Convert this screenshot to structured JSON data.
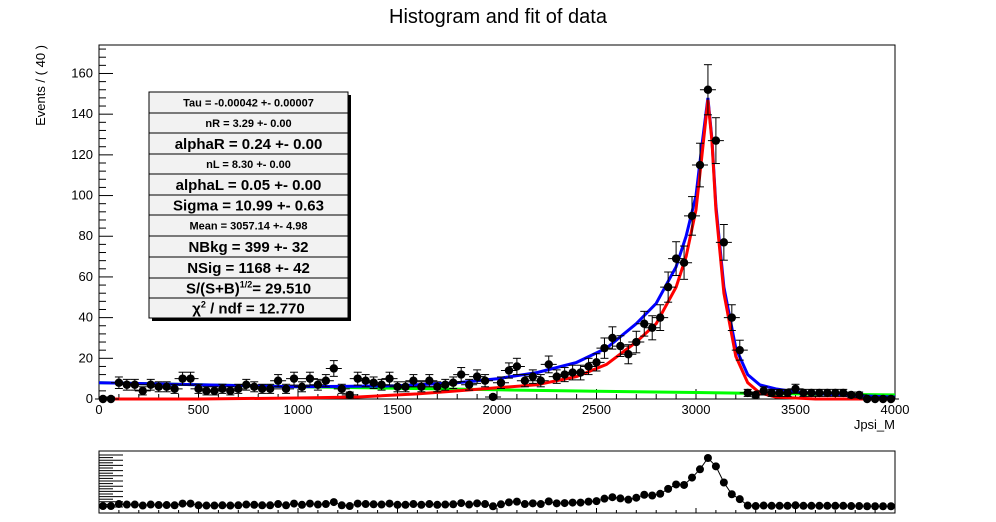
{
  "chart_data": {
    "type": "scatter",
    "title": "Histogram and fit of data",
    "xlabel": "Jpsi_M",
    "ylabel": "Events / ( 40 )",
    "xlim": [
      0,
      4000
    ],
    "ylim": [
      0,
      174
    ],
    "xticks": [
      "0",
      "500",
      "1000",
      "1500",
      "2000",
      "2500",
      "3000",
      "3500",
      "4000"
    ],
    "yticks": [
      "0",
      "20",
      "40",
      "60",
      "80",
      "100",
      "120",
      "140",
      "160"
    ],
    "legend": "none",
    "fit_results": [
      "Tau = -0.00042 +- 0.00007",
      "nR = 3.29 +- 0.00",
      "alphaR = 0.24 +- 0.00",
      "nL = 8.30 +- 0.00",
      "alphaL = 0.05 +- 0.00",
      "Sigma = 10.99 +- 0.63",
      "Mean = 3057.14 +- 4.98",
      "NBkg = 399 +- 32",
      "NSig = 1168 +- 42",
      "S/(S+B)",
      "1/2",
      "= 29.510",
      "χ",
      "2",
      " / ndf = 12.770"
    ],
    "series_colors": {
      "data": "#000000",
      "total": "#0000ff",
      "signal": "#ff0000",
      "background": "#00ff00"
    },
    "data_points": [
      [
        20,
        0
      ],
      [
        60,
        0
      ],
      [
        100,
        8
      ],
      [
        140,
        7
      ],
      [
        180,
        7
      ],
      [
        220,
        4
      ],
      [
        260,
        7
      ],
      [
        300,
        6
      ],
      [
        340,
        6
      ],
      [
        380,
        5
      ],
      [
        420,
        10
      ],
      [
        460,
        10
      ],
      [
        500,
        5
      ],
      [
        540,
        4
      ],
      [
        580,
        4
      ],
      [
        620,
        5
      ],
      [
        660,
        4
      ],
      [
        700,
        5
      ],
      [
        740,
        7
      ],
      [
        780,
        6
      ],
      [
        820,
        5
      ],
      [
        860,
        5
      ],
      [
        900,
        9
      ],
      [
        940,
        5
      ],
      [
        980,
        10
      ],
      [
        1020,
        6
      ],
      [
        1060,
        10
      ],
      [
        1100,
        7
      ],
      [
        1140,
        9
      ],
      [
        1180,
        15
      ],
      [
        1220,
        5
      ],
      [
        1260,
        2
      ],
      [
        1300,
        10
      ],
      [
        1340,
        9
      ],
      [
        1380,
        8
      ],
      [
        1420,
        7
      ],
      [
        1460,
        10
      ],
      [
        1500,
        6
      ],
      [
        1540,
        6
      ],
      [
        1580,
        9
      ],
      [
        1620,
        6
      ],
      [
        1660,
        9
      ],
      [
        1700,
        6
      ],
      [
        1740,
        7
      ],
      [
        1780,
        8
      ],
      [
        1820,
        12
      ],
      [
        1860,
        7
      ],
      [
        1900,
        11
      ],
      [
        1940,
        9
      ],
      [
        1980,
        1
      ],
      [
        2020,
        8
      ],
      [
        2060,
        14
      ],
      [
        2100,
        16
      ],
      [
        2140,
        9
      ],
      [
        2180,
        11
      ],
      [
        2220,
        9
      ],
      [
        2260,
        17
      ],
      [
        2300,
        11
      ],
      [
        2340,
        12
      ],
      [
        2380,
        13
      ],
      [
        2420,
        13
      ],
      [
        2460,
        16
      ],
      [
        2500,
        18
      ],
      [
        2540,
        25
      ],
      [
        2580,
        30
      ],
      [
        2620,
        26
      ],
      [
        2660,
        22
      ],
      [
        2700,
        28
      ],
      [
        2740,
        37
      ],
      [
        2780,
        35
      ],
      [
        2820,
        40
      ],
      [
        2860,
        55
      ],
      [
        2900,
        69
      ],
      [
        2940,
        67
      ],
      [
        2980,
        90
      ],
      [
        3020,
        115
      ],
      [
        3060,
        152
      ],
      [
        3100,
        127
      ],
      [
        3140,
        77
      ],
      [
        3180,
        40
      ],
      [
        3220,
        24
      ],
      [
        3260,
        3
      ],
      [
        3300,
        2
      ],
      [
        3340,
        4
      ],
      [
        3380,
        3
      ],
      [
        3420,
        3
      ],
      [
        3460,
        3
      ],
      [
        3500,
        5
      ],
      [
        3540,
        3
      ],
      [
        3580,
        3
      ],
      [
        3620,
        3
      ],
      [
        3660,
        3
      ],
      [
        3700,
        3
      ],
      [
        3740,
        3
      ],
      [
        3780,
        2
      ],
      [
        3820,
        2
      ],
      [
        3860,
        0
      ],
      [
        3900,
        0
      ],
      [
        3940,
        0
      ],
      [
        3980,
        0
      ]
    ],
    "fit_total": [
      [
        0,
        8
      ],
      [
        500,
        7
      ],
      [
        1000,
        6
      ],
      [
        1500,
        6.5
      ],
      [
        1800,
        8
      ],
      [
        2000,
        10
      ],
      [
        2200,
        13
      ],
      [
        2400,
        18
      ],
      [
        2550,
        25
      ],
      [
        2700,
        37
      ],
      [
        2800,
        47
      ],
      [
        2900,
        65
      ],
      [
        2950,
        80
      ],
      [
        3000,
        100
      ],
      [
        3030,
        125
      ],
      [
        3060,
        148
      ],
      [
        3080,
        128
      ],
      [
        3100,
        95
      ],
      [
        3140,
        55
      ],
      [
        3200,
        25
      ],
      [
        3260,
        12
      ],
      [
        3320,
        7
      ],
      [
        3400,
        5
      ],
      [
        3500,
        3.5
      ],
      [
        3700,
        2
      ],
      [
        4000,
        1
      ]
    ],
    "fit_signal": [
      [
        0,
        0
      ],
      [
        500,
        0
      ],
      [
        1000,
        0.5
      ],
      [
        1300,
        1
      ],
      [
        1600,
        2.5
      ],
      [
        1800,
        4
      ],
      [
        2000,
        5.5
      ],
      [
        2200,
        7
      ],
      [
        2400,
        11
      ],
      [
        2550,
        17
      ],
      [
        2700,
        28
      ],
      [
        2800,
        37
      ],
      [
        2900,
        55
      ],
      [
        2950,
        70
      ],
      [
        3000,
        93
      ],
      [
        3030,
        120
      ],
      [
        3060,
        147
      ],
      [
        3080,
        127
      ],
      [
        3100,
        93
      ],
      [
        3140,
        52
      ],
      [
        3200,
        21
      ],
      [
        3260,
        8
      ],
      [
        3320,
        3
      ],
      [
        3400,
        1
      ],
      [
        3600,
        0
      ],
      [
        4000,
        0
      ]
    ],
    "fit_background": [
      [
        0,
        8
      ],
      [
        500,
        7
      ],
      [
        1000,
        6
      ],
      [
        1500,
        5.3
      ],
      [
        2000,
        4.5
      ],
      [
        2500,
        3.8
      ],
      [
        3000,
        3.2
      ],
      [
        3500,
        2.5
      ],
      [
        4000,
        2
      ]
    ],
    "pull_panel": {
      "ylim": [
        0,
        10
      ],
      "values": [
        0.2,
        0.2,
        0.6,
        0.5,
        0.5,
        0.3,
        0.5,
        0.4,
        0.4,
        0.35,
        0.7,
        0.7,
        0.35,
        0.3,
        0.3,
        0.35,
        0.3,
        0.35,
        0.5,
        0.45,
        0.35,
        0.35,
        0.6,
        0.35,
        0.7,
        0.45,
        0.7,
        0.5,
        0.6,
        1.0,
        0.35,
        0.2,
        0.7,
        0.6,
        0.55,
        0.5,
        0.7,
        0.45,
        0.45,
        0.6,
        0.45,
        0.6,
        0.45,
        0.5,
        0.55,
        0.8,
        0.5,
        0.75,
        0.6,
        0.15,
        0.55,
        0.95,
        1.1,
        0.6,
        0.75,
        0.6,
        1.15,
        0.75,
        0.8,
        0.9,
        0.9,
        1.1,
        1.2,
        1.7,
        2.0,
        1.75,
        1.5,
        1.9,
        2.5,
        2.35,
        2.7,
        3.7,
        4.6,
        4.5,
        6.0,
        7.7,
        10.0,
        8.3,
        5.0,
        2.6,
        1.6,
        0.3,
        0.2,
        0.3,
        0.25,
        0.25,
        0.25,
        0.35,
        0.25,
        0.25,
        0.25,
        0.25,
        0.25,
        0.25,
        0.2,
        0.2,
        0.15,
        0.15,
        0.15,
        0.15
      ]
    }
  }
}
